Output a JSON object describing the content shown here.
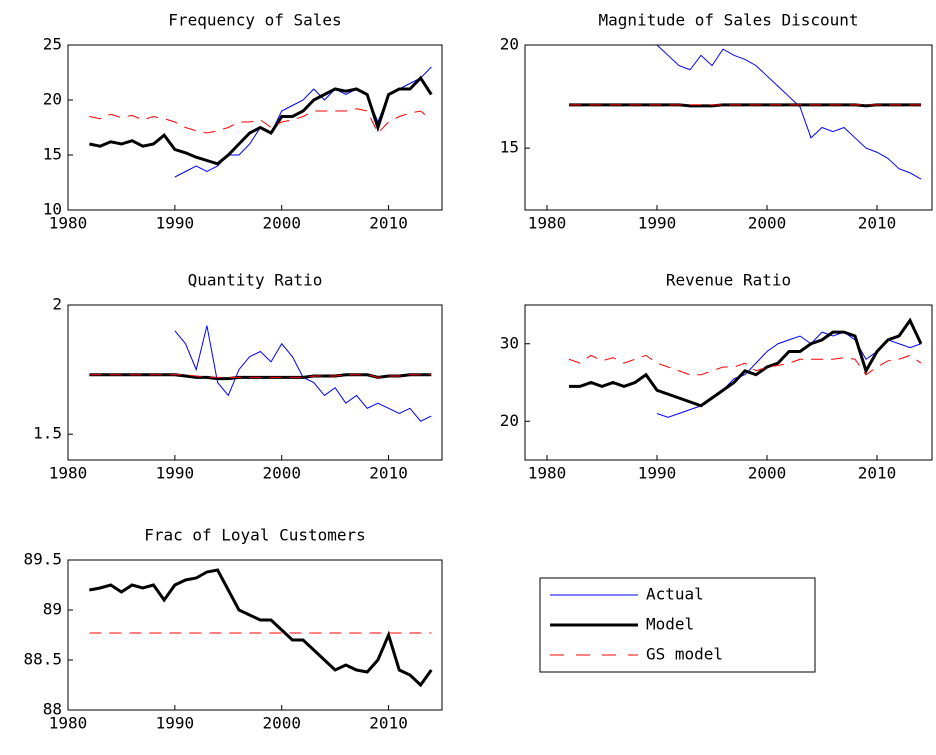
{
  "chart_data": [
    {
      "type": "line",
      "title": "Frequency of Sales",
      "x": [
        1982,
        1983,
        1984,
        1985,
        1986,
        1987,
        1988,
        1989,
        1990,
        1991,
        1992,
        1993,
        1994,
        1995,
        1996,
        1997,
        1998,
        1999,
        2000,
        2001,
        2002,
        2003,
        2004,
        2005,
        2006,
        2007,
        2008,
        2009,
        2010,
        2011,
        2012,
        2013,
        2014
      ],
      "xlim": [
        1980,
        2015
      ],
      "xticks": [
        1980,
        1990,
        2000,
        2010
      ],
      "ylim": [
        10,
        25
      ],
      "yticks": [
        10,
        15,
        20,
        25
      ],
      "series": [
        {
          "name": "Actual",
          "color": "#0000ff",
          "style": "solid",
          "width": 1,
          "values": [
            null,
            null,
            null,
            null,
            null,
            null,
            null,
            null,
            13,
            13.5,
            14,
            13.5,
            14,
            15,
            15,
            16,
            17.5,
            17,
            19,
            19.5,
            20,
            21,
            20,
            21,
            20.5,
            21,
            20.5,
            18,
            20.5,
            21,
            21.5,
            22,
            23
          ]
        },
        {
          "name": "Model",
          "color": "#000000",
          "style": "solid",
          "width": 3,
          "values": [
            16,
            15.8,
            16.2,
            16,
            16.3,
            15.8,
            16,
            16.8,
            15.5,
            15.2,
            14.8,
            14.5,
            14.2,
            15,
            16,
            17,
            17.5,
            17,
            18.5,
            18.5,
            19,
            20,
            20.5,
            21,
            20.8,
            21,
            20.5,
            17.5,
            20.5,
            21,
            21,
            22,
            20.5
          ]
        },
        {
          "name": "GS model",
          "color": "#ff0000",
          "style": "dashed",
          "width": 1,
          "values": [
            18.5,
            18.3,
            18.7,
            18.4,
            18.6,
            18.2,
            18.5,
            18.3,
            18,
            17.5,
            17.2,
            17,
            17.2,
            17.5,
            18,
            18,
            18.2,
            17.5,
            18,
            18.2,
            18.5,
            19,
            19,
            19,
            19,
            19.2,
            19,
            17,
            18,
            18.5,
            18.8,
            19,
            18.2
          ]
        }
      ]
    },
    {
      "type": "line",
      "title": "Magnitude of Sales Discount",
      "x": [
        1982,
        1983,
        1984,
        1985,
        1986,
        1987,
        1988,
        1989,
        1990,
        1991,
        1992,
        1993,
        1994,
        1995,
        1996,
        1997,
        1998,
        1999,
        2000,
        2001,
        2002,
        2003,
        2004,
        2005,
        2006,
        2007,
        2008,
        2009,
        2010,
        2011,
        2012,
        2013,
        2014
      ],
      "xlim": [
        1978,
        2015
      ],
      "xticks": [
        1980,
        1990,
        2000,
        2010
      ],
      "ylim": [
        12,
        20
      ],
      "yticks": [
        15,
        20
      ],
      "series": [
        {
          "name": "Actual",
          "color": "#0000ff",
          "style": "solid",
          "width": 1,
          "values": [
            null,
            null,
            null,
            null,
            null,
            null,
            null,
            null,
            20,
            19.5,
            19,
            18.8,
            19.5,
            19,
            19.8,
            19.5,
            19.3,
            19,
            18.5,
            18,
            17.5,
            17,
            15.5,
            16,
            15.8,
            16,
            15.5,
            15,
            14.8,
            14.5,
            14,
            13.8,
            13.5
          ]
        },
        {
          "name": "Model",
          "color": "#000000",
          "style": "solid",
          "width": 3,
          "values": [
            17.1,
            17.1,
            17.1,
            17.1,
            17.1,
            17.1,
            17.1,
            17.1,
            17.1,
            17.1,
            17.1,
            17.05,
            17.05,
            17.05,
            17.1,
            17.1,
            17.1,
            17.1,
            17.1,
            17.1,
            17.1,
            17.1,
            17.1,
            17.1,
            17.1,
            17.1,
            17.1,
            17.05,
            17.1,
            17.1,
            17.1,
            17.1,
            17.1
          ]
        },
        {
          "name": "GS model",
          "color": "#ff0000",
          "style": "dashed",
          "width": 1,
          "values": [
            17.1,
            17.1,
            17.1,
            17.1,
            17.1,
            17.1,
            17.1,
            17.1,
            17.1,
            17.1,
            17.1,
            17.1,
            17.1,
            17.1,
            17.1,
            17.1,
            17.1,
            17.1,
            17.1,
            17.1,
            17.1,
            17.1,
            17.1,
            17.1,
            17.1,
            17.1,
            17.1,
            17.1,
            17.1,
            17.1,
            17.1,
            17.1,
            17.1
          ]
        }
      ]
    },
    {
      "type": "line",
      "title": "Quantity Ratio",
      "x": [
        1982,
        1983,
        1984,
        1985,
        1986,
        1987,
        1988,
        1989,
        1990,
        1991,
        1992,
        1993,
        1994,
        1995,
        1996,
        1997,
        1998,
        1999,
        2000,
        2001,
        2002,
        2003,
        2004,
        2005,
        2006,
        2007,
        2008,
        2009,
        2010,
        2011,
        2012,
        2013,
        2014
      ],
      "xlim": [
        1980,
        2015
      ],
      "xticks": [
        1980,
        1990,
        2000,
        2010
      ],
      "ylim": [
        1.4,
        2.0
      ],
      "yticks": [
        1.5,
        2
      ],
      "series": [
        {
          "name": "Actual",
          "color": "#0000ff",
          "style": "solid",
          "width": 1,
          "values": [
            null,
            null,
            null,
            null,
            null,
            null,
            null,
            null,
            1.9,
            1.85,
            1.75,
            1.92,
            1.7,
            1.65,
            1.75,
            1.8,
            1.82,
            1.78,
            1.85,
            1.8,
            1.72,
            1.7,
            1.65,
            1.68,
            1.62,
            1.65,
            1.6,
            1.62,
            1.6,
            1.58,
            1.6,
            1.55,
            1.57
          ]
        },
        {
          "name": "Model",
          "color": "#000000",
          "style": "solid",
          "width": 3,
          "values": [
            1.73,
            1.73,
            1.73,
            1.73,
            1.73,
            1.73,
            1.73,
            1.73,
            1.73,
            1.725,
            1.72,
            1.72,
            1.715,
            1.715,
            1.72,
            1.72,
            1.72,
            1.72,
            1.72,
            1.72,
            1.72,
            1.725,
            1.725,
            1.725,
            1.73,
            1.73,
            1.73,
            1.72,
            1.725,
            1.725,
            1.73,
            1.73,
            1.73
          ]
        },
        {
          "name": "GS model",
          "color": "#ff0000",
          "style": "dashed",
          "width": 1,
          "values": [
            1.73,
            1.73,
            1.73,
            1.73,
            1.73,
            1.73,
            1.73,
            1.73,
            1.73,
            1.73,
            1.725,
            1.72,
            1.72,
            1.72,
            1.72,
            1.72,
            1.72,
            1.72,
            1.72,
            1.72,
            1.72,
            1.725,
            1.725,
            1.725,
            1.73,
            1.73,
            1.73,
            1.72,
            1.725,
            1.725,
            1.73,
            1.73,
            1.73
          ]
        }
      ]
    },
    {
      "type": "line",
      "title": "Revenue Ratio",
      "x": [
        1982,
        1983,
        1984,
        1985,
        1986,
        1987,
        1988,
        1989,
        1990,
        1991,
        1992,
        1993,
        1994,
        1995,
        1996,
        1997,
        1998,
        1999,
        2000,
        2001,
        2002,
        2003,
        2004,
        2005,
        2006,
        2007,
        2008,
        2009,
        2010,
        2011,
        2012,
        2013,
        2014
      ],
      "xlim": [
        1978,
        2015
      ],
      "xticks": [
        1980,
        1990,
        2000,
        2010
      ],
      "ylim": [
        15,
        35
      ],
      "yticks": [
        20,
        30
      ],
      "series": [
        {
          "name": "Actual",
          "color": "#0000ff",
          "style": "solid",
          "width": 1,
          "values": [
            null,
            null,
            null,
            null,
            null,
            null,
            null,
            null,
            21,
            20.5,
            21,
            21.5,
            22,
            23,
            24,
            25.5,
            26,
            27.5,
            29,
            30,
            30.5,
            31,
            30,
            31.5,
            31,
            31.5,
            30.5,
            28,
            29,
            30.5,
            30,
            29.5,
            30
          ]
        },
        {
          "name": "Model",
          "color": "#000000",
          "style": "solid",
          "width": 3,
          "values": [
            24.5,
            24.5,
            25,
            24.5,
            25,
            24.5,
            25,
            26,
            24,
            23.5,
            23,
            22.5,
            22,
            23,
            24,
            25,
            26.5,
            26,
            27,
            27.5,
            29,
            29,
            30,
            30.5,
            31.5,
            31.5,
            31,
            26.5,
            29,
            30.5,
            31,
            33,
            30
          ]
        },
        {
          "name": "GS model",
          "color": "#ff0000",
          "style": "dashed",
          "width": 1,
          "values": [
            28,
            27.5,
            28.5,
            27.8,
            28.2,
            27.5,
            28,
            28.5,
            27.5,
            27,
            26.5,
            26,
            26,
            26.5,
            27,
            27,
            27.5,
            26.5,
            27,
            27.2,
            27.5,
            28,
            28,
            28,
            28,
            28.2,
            28,
            26,
            27,
            27.8,
            28,
            28.5,
            27.5
          ]
        }
      ]
    },
    {
      "type": "line",
      "title": "Frac of Loyal Customers",
      "x": [
        1982,
        1983,
        1984,
        1985,
        1986,
        1987,
        1988,
        1989,
        1990,
        1991,
        1992,
        1993,
        1994,
        1995,
        1996,
        1997,
        1998,
        1999,
        2000,
        2001,
        2002,
        2003,
        2004,
        2005,
        2006,
        2007,
        2008,
        2009,
        2010,
        2011,
        2012,
        2013,
        2014
      ],
      "xlim": [
        1980,
        2015
      ],
      "xticks": [
        1980,
        1990,
        2000,
        2010
      ],
      "ylim": [
        88,
        89.5
      ],
      "yticks": [
        88,
        88.5,
        89,
        89.5
      ],
      "series": [
        {
          "name": "Model",
          "color": "#000000",
          "style": "solid",
          "width": 3,
          "values": [
            89.2,
            89.22,
            89.25,
            89.18,
            89.25,
            89.22,
            89.25,
            89.1,
            89.25,
            89.3,
            89.32,
            89.38,
            89.4,
            89.2,
            89.0,
            88.95,
            88.9,
            88.9,
            88.8,
            88.7,
            88.7,
            88.6,
            88.5,
            88.4,
            88.45,
            88.4,
            88.38,
            88.5,
            88.75,
            88.4,
            88.35,
            88.25,
            88.4
          ]
        },
        {
          "name": "GS model",
          "color": "#ff0000",
          "style": "dashed",
          "width": 1,
          "values": [
            88.77,
            88.77,
            88.77,
            88.77,
            88.77,
            88.77,
            88.77,
            88.77,
            88.77,
            88.77,
            88.77,
            88.77,
            88.77,
            88.77,
            88.77,
            88.77,
            88.77,
            88.77,
            88.77,
            88.77,
            88.77,
            88.77,
            88.77,
            88.77,
            88.77,
            88.77,
            88.77,
            88.77,
            88.77,
            88.77,
            88.77,
            88.77,
            88.77
          ]
        }
      ]
    }
  ]
}
